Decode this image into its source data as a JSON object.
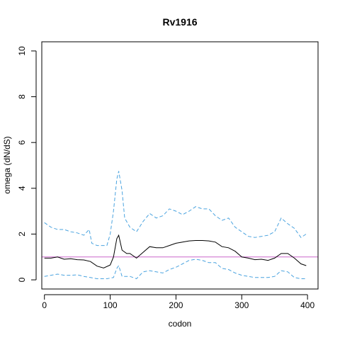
{
  "chart_data": {
    "type": "line",
    "title": "Rv1916",
    "xlabel": "codon",
    "ylabel": "omega (dN/dS)",
    "xlim": [
      -4,
      416
    ],
    "ylim": [
      -0.4,
      10.4
    ],
    "x_ticks": [
      0,
      100,
      200,
      300,
      400
    ],
    "y_ticks": [
      0,
      2,
      4,
      6,
      8,
      10
    ],
    "x_tick_labels": [
      "0",
      "100",
      "200",
      "300",
      "400"
    ],
    "y_tick_labels": [
      "0",
      "2",
      "4",
      "6",
      "8",
      "10"
    ],
    "grid": false,
    "legend": "none",
    "reference_line": {
      "y": 1,
      "color": "#cc66cc"
    },
    "series": [
      {
        "style": "solid",
        "color": "#000000",
        "points": [
          [
            0,
            0.95
          ],
          [
            10,
            0.95
          ],
          [
            20,
            1.0
          ],
          [
            30,
            0.9
          ],
          [
            40,
            0.92
          ],
          [
            50,
            0.88
          ],
          [
            60,
            0.87
          ],
          [
            70,
            0.8
          ],
          [
            80,
            0.6
          ],
          [
            90,
            0.52
          ],
          [
            100,
            0.65
          ],
          [
            105,
            1.0
          ],
          [
            110,
            1.8
          ],
          [
            113,
            1.95
          ],
          [
            118,
            1.3
          ],
          [
            125,
            1.15
          ],
          [
            130,
            1.15
          ],
          [
            140,
            0.95
          ],
          [
            150,
            1.2
          ],
          [
            160,
            1.45
          ],
          [
            170,
            1.4
          ],
          [
            180,
            1.4
          ],
          [
            190,
            1.5
          ],
          [
            200,
            1.6
          ],
          [
            210,
            1.65
          ],
          [
            220,
            1.7
          ],
          [
            230,
            1.72
          ],
          [
            240,
            1.72
          ],
          [
            250,
            1.7
          ],
          [
            260,
            1.65
          ],
          [
            270,
            1.45
          ],
          [
            280,
            1.4
          ],
          [
            290,
            1.25
          ],
          [
            300,
            1.0
          ],
          [
            310,
            0.95
          ],
          [
            320,
            0.88
          ],
          [
            330,
            0.9
          ],
          [
            340,
            0.85
          ],
          [
            350,
            0.95
          ],
          [
            360,
            1.15
          ],
          [
            370,
            1.15
          ],
          [
            380,
            0.95
          ],
          [
            390,
            0.7
          ],
          [
            398,
            0.62
          ]
        ]
      },
      {
        "style": "dashed",
        "color": "#4aa3df",
        "points": [
          [
            0,
            2.5
          ],
          [
            10,
            2.3
          ],
          [
            20,
            2.2
          ],
          [
            30,
            2.2
          ],
          [
            40,
            2.1
          ],
          [
            50,
            2.05
          ],
          [
            60,
            1.95
          ],
          [
            68,
            2.2
          ],
          [
            72,
            1.6
          ],
          [
            80,
            1.5
          ],
          [
            95,
            1.5
          ],
          [
            100,
            2.0
          ],
          [
            105,
            3.0
          ],
          [
            110,
            4.4
          ],
          [
            113,
            4.75
          ],
          [
            118,
            3.9
          ],
          [
            122,
            2.7
          ],
          [
            130,
            2.3
          ],
          [
            140,
            2.1
          ],
          [
            150,
            2.55
          ],
          [
            160,
            2.9
          ],
          [
            170,
            2.7
          ],
          [
            180,
            2.8
          ],
          [
            190,
            3.1
          ],
          [
            200,
            3.0
          ],
          [
            210,
            2.85
          ],
          [
            220,
            3.0
          ],
          [
            230,
            3.2
          ],
          [
            240,
            3.1
          ],
          [
            250,
            3.1
          ],
          [
            260,
            2.8
          ],
          [
            270,
            2.6
          ],
          [
            280,
            2.7
          ],
          [
            290,
            2.3
          ],
          [
            300,
            2.1
          ],
          [
            310,
            1.9
          ],
          [
            320,
            1.85
          ],
          [
            330,
            1.9
          ],
          [
            340,
            1.95
          ],
          [
            350,
            2.1
          ],
          [
            360,
            2.7
          ],
          [
            370,
            2.45
          ],
          [
            380,
            2.25
          ],
          [
            390,
            1.85
          ],
          [
            398,
            2.0
          ]
        ]
      },
      {
        "style": "dashed",
        "color": "#4aa3df",
        "points": [
          [
            0,
            0.15
          ],
          [
            10,
            0.2
          ],
          [
            20,
            0.25
          ],
          [
            30,
            0.2
          ],
          [
            40,
            0.2
          ],
          [
            50,
            0.22
          ],
          [
            60,
            0.15
          ],
          [
            70,
            0.1
          ],
          [
            80,
            0.05
          ],
          [
            95,
            0.05
          ],
          [
            105,
            0.1
          ],
          [
            110,
            0.5
          ],
          [
            113,
            0.62
          ],
          [
            118,
            0.15
          ],
          [
            130,
            0.15
          ],
          [
            140,
            0.05
          ],
          [
            150,
            0.35
          ],
          [
            160,
            0.4
          ],
          [
            170,
            0.35
          ],
          [
            180,
            0.3
          ],
          [
            190,
            0.45
          ],
          [
            200,
            0.55
          ],
          [
            210,
            0.7
          ],
          [
            220,
            0.85
          ],
          [
            230,
            0.9
          ],
          [
            240,
            0.85
          ],
          [
            250,
            0.75
          ],
          [
            260,
            0.75
          ],
          [
            270,
            0.5
          ],
          [
            280,
            0.45
          ],
          [
            290,
            0.3
          ],
          [
            300,
            0.2
          ],
          [
            310,
            0.15
          ],
          [
            320,
            0.1
          ],
          [
            330,
            0.1
          ],
          [
            340,
            0.1
          ],
          [
            350,
            0.15
          ],
          [
            360,
            0.4
          ],
          [
            370,
            0.35
          ],
          [
            380,
            0.1
          ],
          [
            390,
            0.05
          ],
          [
            398,
            0.05
          ]
        ]
      }
    ]
  }
}
